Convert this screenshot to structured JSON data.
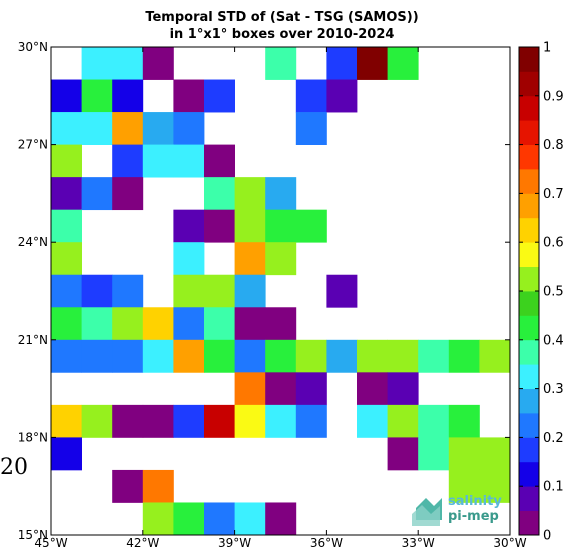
{
  "chart_data": {
    "type": "heatmap",
    "title_line1": "Temporal STD of (Sat - TSG (SAMOS))",
    "title_line2": "in 1°x1° boxes over 2010-2024",
    "xlabel": "",
    "ylabel": "",
    "xlim": [
      -45,
      -30
    ],
    "ylim": [
      15,
      30
    ],
    "x_ticks": [
      {
        "value": -45,
        "label": "45°W"
      },
      {
        "value": -42,
        "label": "42°W"
      },
      {
        "value": -39,
        "label": "39°W"
      },
      {
        "value": -36,
        "label": "36°W"
      },
      {
        "value": -33,
        "label": "33°W"
      },
      {
        "value": -30,
        "label": "30°W"
      }
    ],
    "y_ticks": [
      {
        "value": 30,
        "label": "30°N"
      },
      {
        "value": 27,
        "label": "27°N"
      },
      {
        "value": 24,
        "label": "24°N"
      },
      {
        "value": 21,
        "label": "21°N"
      },
      {
        "value": 18,
        "label": "18°N"
      },
      {
        "value": 15,
        "label": "15°N"
      }
    ],
    "colorbar": {
      "range": [
        0,
        1
      ],
      "ticks": [
        "0",
        "0.1",
        "0.2",
        "0.3",
        "0.4",
        "0.5",
        "0.6",
        "0.7",
        "0.8",
        "0.9",
        "1"
      ],
      "colors": [
        "#800080",
        "#5a00b3",
        "#1400e8",
        "#1e3cff",
        "#1f78ff",
        "#28aaf0",
        "#3cf0ff",
        "#3cffaa",
        "#28f03c",
        "#3cd21e",
        "#96f01e",
        "#fafa14",
        "#ffd200",
        "#ffa000",
        "#ff7800",
        "#ff3700",
        "#e61400",
        "#c80000",
        "#a00000",
        "#800000"
      ]
    },
    "grid_rows_note": "rows from 29-30N (top) to 15-16N (bottom); columns from 45-44W (left) to 31-30W (right); values are STD in 0-1 scale, null = no data",
    "rows": [
      [
        null,
        0.32,
        0.32,
        0.02,
        null,
        null,
        null,
        0.38,
        null,
        0.17,
        0.98,
        0.42,
        null,
        null,
        null
      ],
      [
        0.12,
        0.42,
        0.13,
        null,
        0.03,
        0.17,
        null,
        null,
        0.17,
        0.07,
        null,
        null,
        null,
        null,
        null
      ],
      [
        0.32,
        0.32,
        0.67,
        0.27,
        0.22,
        null,
        null,
        null,
        0.22,
        null,
        null,
        null,
        null,
        null,
        null
      ],
      [
        0.52,
        null,
        0.17,
        0.32,
        0.32,
        0.02,
        null,
        null,
        null,
        null,
        null,
        null,
        null,
        null,
        null
      ],
      [
        0.07,
        0.22,
        0.03,
        null,
        null,
        0.37,
        0.52,
        0.27,
        null,
        null,
        null,
        null,
        null,
        null,
        null
      ],
      [
        0.37,
        null,
        null,
        null,
        0.07,
        0.02,
        0.52,
        0.42,
        0.42,
        null,
        null,
        null,
        null,
        null,
        null
      ],
      [
        0.52,
        null,
        null,
        null,
        0.32,
        null,
        0.67,
        0.52,
        null,
        null,
        null,
        null,
        null,
        null,
        null
      ],
      [
        0.22,
        0.17,
        0.22,
        null,
        0.52,
        0.52,
        0.27,
        null,
        null,
        0.07,
        null,
        null,
        null,
        null,
        null
      ],
      [
        0.42,
        0.37,
        0.52,
        0.62,
        0.22,
        0.37,
        0.02,
        0.02,
        null,
        null,
        null,
        null,
        null,
        null,
        null
      ],
      [
        0.22,
        0.22,
        0.22,
        0.32,
        0.67,
        0.42,
        0.22,
        0.42,
        0.52,
        0.27,
        0.52,
        0.52,
        0.37,
        0.42,
        0.52
      ],
      [
        null,
        null,
        null,
        null,
        null,
        null,
        0.72,
        0.02,
        0.07,
        null,
        0.02,
        0.07,
        null,
        null,
        null
      ],
      [
        0.62,
        0.52,
        0.02,
        0.02,
        0.17,
        0.87,
        0.57,
        0.32,
        0.22,
        null,
        0.32,
        0.52,
        0.37,
        0.42,
        null
      ],
      [
        0.12,
        null,
        null,
        null,
        null,
        null,
        null,
        null,
        null,
        null,
        null,
        0.02,
        0.37,
        0.52,
        0.52
      ],
      [
        null,
        null,
        0.02,
        0.72,
        null,
        null,
        null,
        null,
        null,
        null,
        null,
        null,
        null,
        0.52,
        0.52
      ],
      [
        null,
        null,
        null,
        0.52,
        0.42,
        0.22,
        0.32,
        0.02,
        null,
        null,
        null,
        null,
        null,
        null,
        null
      ]
    ]
  },
  "stray_mark": "20",
  "logo": {
    "line1": "salinity",
    "line2": "pi-mep"
  }
}
